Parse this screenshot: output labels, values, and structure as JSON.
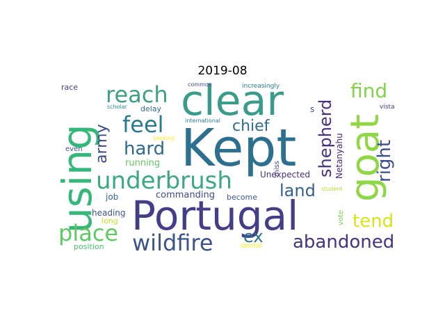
{
  "title": "2019-08",
  "words": [
    {
      "text": "Kept",
      "color": "#2c6f8e"
    },
    {
      "text": "Portugal",
      "color": "#433e85"
    },
    {
      "text": "clear",
      "color": "#3b9b8b"
    },
    {
      "text": "using",
      "color": "#35b779"
    },
    {
      "text": "goat",
      "color": "#8fd744"
    },
    {
      "text": "underbrush",
      "color": "#3ba87f"
    },
    {
      "text": "wildfire",
      "color": "#3b528b"
    },
    {
      "text": "place",
      "color": "#5ec962"
    },
    {
      "text": "reach",
      "color": "#3f9f81"
    },
    {
      "text": "feel",
      "color": "#2a788e"
    },
    {
      "text": "hard",
      "color": "#31688e"
    },
    {
      "text": "abandoned",
      "color": "#46337e"
    },
    {
      "text": "find",
      "color": "#84d44b"
    },
    {
      "text": "shepherd",
      "color": "#46317e"
    },
    {
      "text": "right",
      "color": "#3c4f8a"
    },
    {
      "text": "land",
      "color": "#355f8d"
    },
    {
      "text": "tend",
      "color": "#d8e219"
    },
    {
      "text": "chief",
      "color": "#2f6c8e"
    },
    {
      "text": "army",
      "color": "#3e4c8a"
    },
    {
      "text": "ex",
      "color": "#2d718e"
    },
    {
      "text": "Netanyahu",
      "color": "#482576"
    },
    {
      "text": "Unexpected",
      "color": "#46307e"
    },
    {
      "text": "running",
      "color": "#5ec962"
    },
    {
      "text": "commanding",
      "color": "#3f4889"
    },
    {
      "text": "become",
      "color": "#38598c"
    },
    {
      "text": "job",
      "color": "#31688e"
    },
    {
      "text": "heading",
      "color": "#3b528b"
    },
    {
      "text": "long",
      "color": "#c2df23"
    },
    {
      "text": "position",
      "color": "#4ac16d"
    },
    {
      "text": "denial",
      "color": "#fde725"
    },
    {
      "text": "vote",
      "color": "#7ad151"
    },
    {
      "text": "student",
      "color": "#b5de2b"
    },
    {
      "text": "miss",
      "color": "#414487"
    },
    {
      "text": "s",
      "color": "#3b528b"
    },
    {
      "text": "delay",
      "color": "#31688e"
    },
    {
      "text": "seeking",
      "color": "#fde725"
    },
    {
      "text": "international",
      "color": "#2a788e"
    },
    {
      "text": "even",
      "color": "#3b528b"
    },
    {
      "text": "race",
      "color": "#443983"
    },
    {
      "text": "scholar",
      "color": "#21918c"
    },
    {
      "text": "common",
      "color": "#3e4989"
    },
    {
      "text": "increasingly",
      "color": "#26828e"
    },
    {
      "text": "vista",
      "color": "#433e85"
    }
  ]
}
